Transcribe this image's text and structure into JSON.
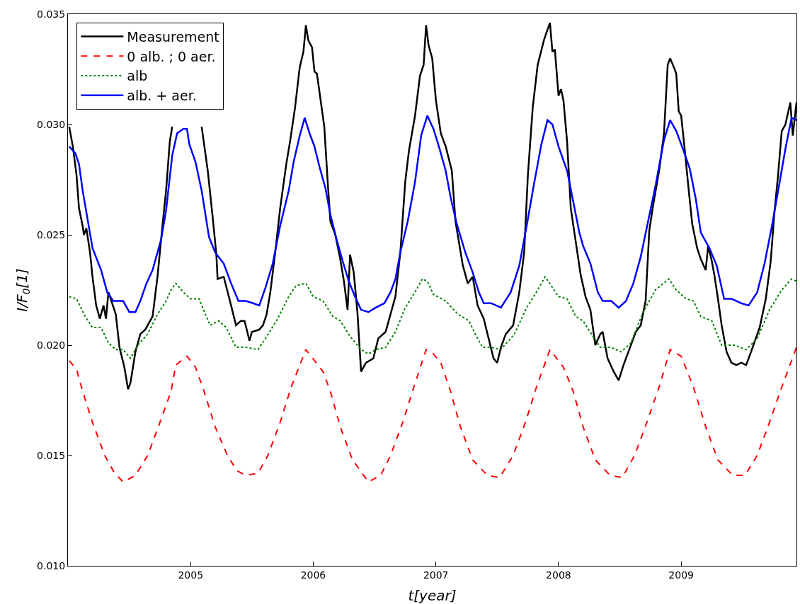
{
  "chart_data": {
    "type": "line",
    "xlabel": "t[year]",
    "ylabel": "I/F$_{0}$[1]",
    "xlim": [
      2004.0,
      2009.94
    ],
    "ylim": [
      0.01,
      0.035
    ],
    "xticks": [
      2005,
      2006,
      2007,
      2008,
      2009
    ],
    "yticks": [
      {
        "value": 0.01,
        "label": "0.010"
      },
      0.015,
      {
        "value": 0.02,
        "label": "0.020"
      },
      0.025,
      {
        "value": 0.03,
        "label": "0.030"
      },
      0.035
    ],
    "legend": "top left",
    "marker": "none",
    "series": [
      {
        "name": "Measurement",
        "color": "#000000",
        "line_style": "solid",
        "x": [
          2004.01,
          2004.04,
          2004.07,
          2004.09,
          2004.12,
          2004.13,
          2004.15,
          2004.18,
          2004.2,
          2004.23,
          2004.26,
          2004.29,
          2004.31,
          2004.33,
          2004.39,
          2004.42,
          2004.46,
          2004.49,
          2004.51,
          2004.55,
          2004.59,
          2004.63,
          2004.69,
          2004.73,
          2004.77,
          2004.8,
          2004.83,
          2004.85,
          2004.95,
          2005.09,
          2005.11,
          2005.14,
          2005.18,
          2005.21,
          2005.22,
          2005.27,
          2005.33,
          2005.37,
          2005.41,
          2005.44,
          2005.48,
          2005.5,
          2005.56,
          2005.59,
          2005.62,
          2005.65,
          2005.69,
          2005.73,
          2005.78,
          2005.81,
          2005.85,
          2005.89,
          2005.92,
          2005.94,
          2005.96,
          2005.99,
          2006.01,
          2006.03,
          2006.06,
          2006.09,
          2006.12,
          2006.14,
          2006.18,
          2006.22,
          2006.25,
          2006.28,
          2006.3,
          2006.33,
          2006.36,
          2006.39,
          2006.43,
          2006.49,
          2006.53,
          2006.59,
          2006.63,
          2006.67,
          2006.71,
          2006.75,
          2006.78,
          2006.83,
          2006.87,
          2006.9,
          2006.92,
          2006.94,
          2006.97,
          2007.0,
          2007.04,
          2007.08,
          2007.13,
          2007.16,
          2007.22,
          2007.26,
          2007.3,
          2007.34,
          2007.39,
          2007.43,
          2007.47,
          2007.5,
          2007.53,
          2007.57,
          2007.63,
          2007.68,
          2007.72,
          2007.75,
          2007.79,
          2007.83,
          2007.88,
          2007.91,
          2007.93,
          2007.95,
          2007.97,
          2008.0,
          2008.02,
          2008.04,
          2008.07,
          2008.1,
          2008.14,
          2008.18,
          2008.22,
          2008.26,
          2008.3,
          2008.34,
          2008.36,
          2008.4,
          2008.45,
          2008.49,
          2008.53,
          2008.57,
          2008.63,
          2008.67,
          2008.71,
          2008.74,
          2008.77,
          2008.82,
          2008.86,
          2008.89,
          2008.91,
          2008.94,
          2008.96,
          2008.98,
          2009.0,
          2009.03,
          2009.06,
          2009.09,
          2009.13,
          2009.16,
          2009.2,
          2009.22,
          2009.25,
          2009.27,
          2009.3,
          2009.33,
          2009.37,
          2009.41,
          2009.45,
          2009.49,
          2009.53,
          2009.57,
          2009.64,
          2009.69,
          2009.73,
          2009.76,
          2009.79,
          2009.82,
          2009.85,
          2009.89,
          2009.91,
          2009.94
        ],
        "values": [
          0.0299,
          0.029,
          0.0277,
          0.0262,
          0.0254,
          0.025,
          0.0253,
          0.0242,
          0.0231,
          0.0218,
          0.0212,
          0.0218,
          0.0212,
          0.0224,
          0.0214,
          0.0199,
          0.019,
          0.018,
          0.0183,
          0.0197,
          0.0205,
          0.0207,
          0.0213,
          0.0231,
          0.0254,
          0.027,
          0.0292,
          0.0299,
          null,
          0.0299,
          0.0291,
          0.0279,
          0.0258,
          0.0241,
          0.023,
          0.0231,
          0.0218,
          0.0209,
          0.0211,
          0.0211,
          0.0202,
          0.0206,
          0.0207,
          0.0209,
          0.0214,
          0.0224,
          0.0242,
          0.0262,
          0.0282,
          0.0292,
          0.0307,
          0.0326,
          0.0333,
          0.0345,
          0.0338,
          0.0335,
          0.0324,
          0.0323,
          0.0311,
          0.0299,
          0.0272,
          0.0256,
          0.025,
          0.0239,
          0.0229,
          0.0216,
          0.0241,
          0.0233,
          0.0215,
          0.0188,
          0.0192,
          0.0194,
          0.0203,
          0.0206,
          0.0214,
          0.0222,
          0.0242,
          0.0274,
          0.0288,
          0.0304,
          0.0322,
          0.0327,
          0.0345,
          0.0336,
          0.033,
          0.0311,
          0.0296,
          0.029,
          0.0279,
          0.0256,
          0.0236,
          0.0228,
          0.0231,
          0.0218,
          0.0212,
          0.0203,
          0.0194,
          0.0192,
          0.0199,
          0.0205,
          0.0209,
          0.0224,
          0.0242,
          0.0277,
          0.0308,
          0.0327,
          0.0338,
          0.0343,
          0.0346,
          0.0333,
          0.0334,
          0.0313,
          0.0316,
          0.0311,
          0.0292,
          0.0262,
          0.0247,
          0.0232,
          0.0222,
          0.0216,
          0.02,
          0.0205,
          0.0206,
          0.0194,
          0.0188,
          0.0184,
          0.0191,
          0.0197,
          0.0206,
          0.0209,
          0.022,
          0.0252,
          0.0263,
          0.0279,
          0.0296,
          0.0327,
          0.033,
          0.0326,
          0.0323,
          0.0306,
          0.0304,
          0.0288,
          0.0271,
          0.0255,
          0.0244,
          0.0239,
          0.0234,
          0.0245,
          0.0238,
          0.0232,
          0.0221,
          0.0209,
          0.0197,
          0.0192,
          0.0191,
          0.0192,
          0.0191,
          0.0197,
          0.0208,
          0.0221,
          0.0238,
          0.026,
          0.0277,
          0.0297,
          0.03,
          0.031,
          0.0295,
          0.031
        ]
      },
      {
        "name": "0 alb. ; 0 aer.",
        "color": "#ff0000",
        "line_style": "dashed",
        "x": [
          2004.01,
          2004.07,
          2004.12,
          2004.2,
          2004.3,
          2004.38,
          2004.45,
          2004.55,
          2004.65,
          2004.75,
          2004.84,
          2004.88,
          2004.97,
          2005.04,
          2005.11,
          2005.2,
          2005.3,
          2005.38,
          2005.45,
          2005.55,
          2005.63,
          2005.73,
          2005.82,
          2005.94,
          2006.08,
          2006.14,
          2006.22,
          2006.32,
          2006.45,
          2006.55,
          2006.63,
          2006.73,
          2006.82,
          2006.92,
          2006.98,
          2007.04,
          2007.12,
          2007.2,
          2007.3,
          2007.42,
          2007.52,
          2007.63,
          2007.73,
          2007.82,
          2007.93,
          2008.04,
          2008.12,
          2008.2,
          2008.3,
          2008.42,
          2008.52,
          2008.62,
          2008.72,
          2008.82,
          2008.91,
          2009.0,
          2009.1,
          2009.2,
          2009.3,
          2009.42,
          2009.52,
          2009.62,
          2009.72,
          2009.82,
          2009.94
        ],
        "values": [
          0.0193,
          0.0189,
          0.0179,
          0.0165,
          0.015,
          0.0142,
          0.0138,
          0.0141,
          0.015,
          0.0165,
          0.0179,
          0.0191,
          0.0195,
          0.019,
          0.0179,
          0.0163,
          0.015,
          0.0143,
          0.0141,
          0.0142,
          0.015,
          0.0165,
          0.0181,
          0.0198,
          0.0188,
          0.0179,
          0.0163,
          0.0148,
          0.0138,
          0.0141,
          0.015,
          0.0165,
          0.0181,
          0.0198,
          0.0196,
          0.0192,
          0.0179,
          0.0163,
          0.0148,
          0.0141,
          0.014,
          0.015,
          0.0165,
          0.0181,
          0.0198,
          0.019,
          0.0179,
          0.0163,
          0.0148,
          0.0141,
          0.014,
          0.015,
          0.0165,
          0.0181,
          0.0198,
          0.0195,
          0.0181,
          0.0163,
          0.0148,
          0.0141,
          0.0141,
          0.015,
          0.0165,
          0.0181,
          0.0199
        ]
      },
      {
        "name": "alb",
        "color": "#008000",
        "line_style": "dotted",
        "x": [
          2004.01,
          2004.07,
          2004.14,
          2004.2,
          2004.27,
          2004.33,
          2004.39,
          2004.45,
          2004.51,
          2004.57,
          2004.65,
          2004.73,
          2004.8,
          2004.84,
          2004.88,
          2004.94,
          2005.0,
          2005.07,
          2005.12,
          2005.16,
          2005.23,
          2005.29,
          2005.37,
          2005.45,
          2005.55,
          2005.61,
          2005.71,
          2005.8,
          2005.86,
          2005.94,
          2006.0,
          2006.08,
          2006.16,
          2006.22,
          2006.3,
          2006.39,
          2006.45,
          2006.51,
          2006.59,
          2006.67,
          2006.75,
          2006.84,
          2006.89,
          2006.93,
          2006.98,
          2007.08,
          2007.18,
          2007.27,
          2007.33,
          2007.38,
          2007.45,
          2007.53,
          2007.64,
          2007.74,
          2007.82,
          2007.89,
          2007.94,
          2008.0,
          2008.07,
          2008.14,
          2008.2,
          2008.28,
          2008.34,
          2008.43,
          2008.51,
          2008.59,
          2008.69,
          2008.79,
          2008.9,
          2008.96,
          2009.04,
          2009.1,
          2009.16,
          2009.25,
          2009.33,
          2009.43,
          2009.53,
          2009.62,
          2009.72,
          2009.82,
          2009.9,
          2009.94
        ],
        "values": [
          0.0222,
          0.0221,
          0.0213,
          0.0208,
          0.0208,
          0.0201,
          0.0198,
          0.0198,
          0.0194,
          0.02,
          0.0205,
          0.0214,
          0.022,
          0.0225,
          0.0228,
          0.0224,
          0.0221,
          0.0221,
          0.0214,
          0.0209,
          0.0211,
          0.0208,
          0.0199,
          0.0199,
          0.0198,
          0.0203,
          0.0212,
          0.0222,
          0.0227,
          0.0228,
          0.0222,
          0.022,
          0.0213,
          0.0211,
          0.0204,
          0.0198,
          0.0196,
          0.0198,
          0.0199,
          0.0206,
          0.0217,
          0.0225,
          0.023,
          0.0229,
          0.0223,
          0.022,
          0.0214,
          0.0211,
          0.0204,
          0.0199,
          0.0199,
          0.0198,
          0.0205,
          0.0217,
          0.0224,
          0.0231,
          0.0227,
          0.0222,
          0.0221,
          0.0213,
          0.0211,
          0.0204,
          0.0199,
          0.0199,
          0.0197,
          0.0201,
          0.0215,
          0.0225,
          0.023,
          0.0225,
          0.0221,
          0.022,
          0.0213,
          0.0211,
          0.02,
          0.02,
          0.0198,
          0.0203,
          0.0216,
          0.0225,
          0.023,
          0.0229
        ]
      },
      {
        "name": "alb. + aer.",
        "color": "#0000ff",
        "line_style": "solid",
        "x": [
          2004.01,
          2004.06,
          2004.09,
          2004.12,
          2004.16,
          2004.2,
          2004.27,
          2004.32,
          2004.37,
          2004.45,
          2004.5,
          2004.55,
          2004.59,
          2004.64,
          2004.69,
          2004.76,
          2004.8,
          2004.85,
          2004.89,
          2004.94,
          2004.97,
          2004.99,
          2005.04,
          2005.09,
          2005.15,
          2005.2,
          2005.27,
          2005.33,
          2005.39,
          2005.45,
          2005.51,
          2005.56,
          2005.61,
          2005.67,
          2005.73,
          2005.8,
          2005.84,
          2005.89,
          2005.93,
          2005.97,
          2006.01,
          2006.05,
          2006.1,
          2006.14,
          2006.19,
          2006.24,
          2006.29,
          2006.34,
          2006.39,
          2006.45,
          2006.51,
          2006.58,
          2006.63,
          2006.67,
          2006.71,
          2006.77,
          2006.83,
          2006.88,
          2006.93,
          2006.98,
          2007.03,
          2007.08,
          2007.12,
          2007.17,
          2007.24,
          2007.3,
          2007.35,
          2007.39,
          2007.45,
          2007.53,
          2007.61,
          2007.68,
          2007.74,
          2007.8,
          2007.86,
          2007.91,
          2007.95,
          2008.0,
          2008.07,
          2008.12,
          2008.17,
          2008.2,
          2008.26,
          2008.32,
          2008.36,
          2008.43,
          2008.49,
          2008.55,
          2008.61,
          2008.67,
          2008.73,
          2008.79,
          2008.86,
          2008.91,
          2008.96,
          2009.02,
          2009.07,
          2009.12,
          2009.16,
          2009.23,
          2009.29,
          2009.35,
          2009.41,
          2009.49,
          2009.55,
          2009.62,
          2009.68,
          2009.74,
          2009.8,
          2009.85,
          2009.9,
          2009.94
        ],
        "values": [
          0.029,
          0.0287,
          0.0282,
          0.027,
          0.0257,
          0.0244,
          0.0234,
          0.0224,
          0.022,
          0.022,
          0.0215,
          0.0215,
          0.022,
          0.0228,
          0.0234,
          0.0248,
          0.0261,
          0.0286,
          0.0296,
          0.0298,
          0.0298,
          0.0291,
          0.0283,
          0.027,
          0.0249,
          0.0242,
          0.0237,
          0.0228,
          0.022,
          0.022,
          0.0219,
          0.0218,
          0.0226,
          0.0237,
          0.0254,
          0.027,
          0.0283,
          0.0295,
          0.0303,
          0.0296,
          0.029,
          0.0281,
          0.0271,
          0.0259,
          0.0248,
          0.0238,
          0.0229,
          0.0222,
          0.0216,
          0.0215,
          0.0217,
          0.0219,
          0.0224,
          0.023,
          0.0242,
          0.0256,
          0.0274,
          0.0295,
          0.0304,
          0.0298,
          0.0289,
          0.0279,
          0.0267,
          0.0255,
          0.0242,
          0.0233,
          0.0224,
          0.0219,
          0.0219,
          0.0217,
          0.0224,
          0.0236,
          0.0254,
          0.0273,
          0.0291,
          0.0302,
          0.03,
          0.029,
          0.0279,
          0.0265,
          0.0251,
          0.0245,
          0.0237,
          0.0224,
          0.022,
          0.022,
          0.0217,
          0.022,
          0.0228,
          0.024,
          0.0256,
          0.0272,
          0.0293,
          0.0302,
          0.0297,
          0.0288,
          0.028,
          0.0266,
          0.0251,
          0.0244,
          0.0236,
          0.0221,
          0.0221,
          0.0219,
          0.0218,
          0.0224,
          0.0237,
          0.0254,
          0.0273,
          0.0289,
          0.0303,
          0.0302
        ]
      }
    ]
  }
}
